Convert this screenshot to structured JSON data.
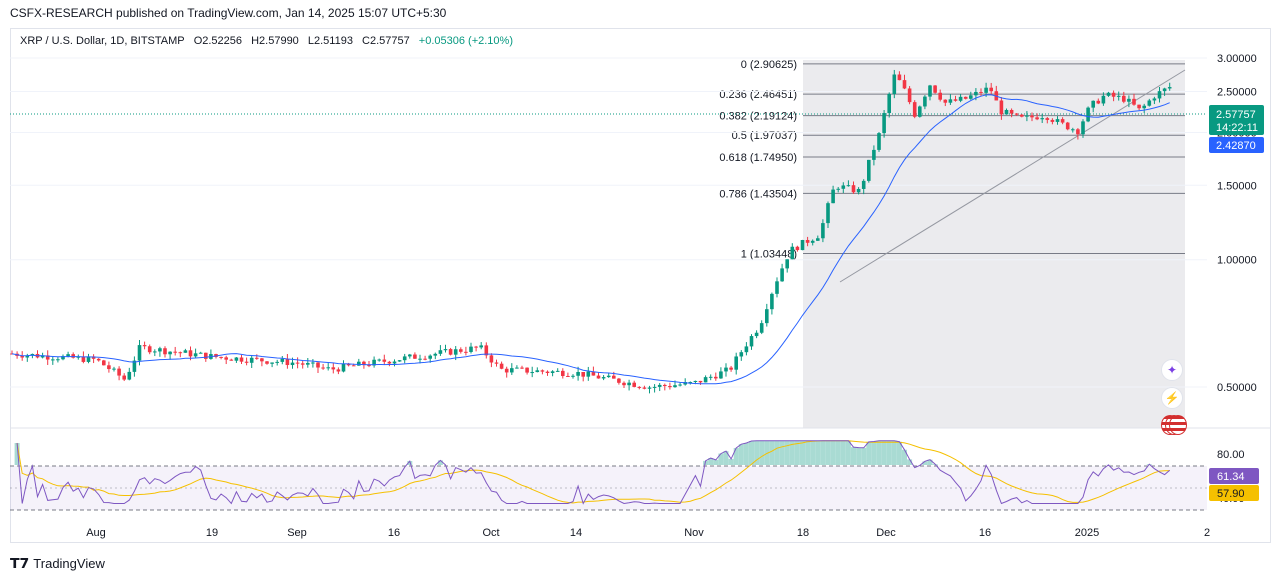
{
  "header": {
    "published_by": "CSFX-RESEARCH published on TradingView.com, Jan 14, 2025 15:07 UTC+5:30"
  },
  "legend": {
    "symbol": "XRP / U.S. Dollar, 1D, BITSTAMP",
    "open": "O2.52256",
    "high": "H2.57990",
    "low": "L2.51193",
    "close": "C2.57757",
    "change": "+0.05306 (+2.10%)",
    "change_color": "#089981"
  },
  "footer": {
    "brand": "TradingView"
  },
  "colors": {
    "up": "#089981",
    "down": "#f23645",
    "ma": "#2962ff",
    "rsi": "#7e57c2",
    "rsi_ma": "#f5c000",
    "fib_zone": "#e9e9ec"
  },
  "chart_data": [
    {
      "type": "candlestick",
      "title": "",
      "y_scale": "log",
      "ylim": [
        0.35,
        3.15
      ],
      "y_ticks": [
        "3.00000",
        "2.50000",
        "2.00000",
        "1.50000",
        "1.00000",
        "0.50000"
      ],
      "x_ticks": [
        "Aug",
        "19",
        "Sep",
        "16",
        "Oct",
        "14",
        "Nov",
        "18",
        "Dec",
        "16",
        "2025",
        "2"
      ],
      "price_labels": {
        "last": "2.57757",
        "countdown": "14:22:11",
        "ma": "2.42870"
      },
      "fib_levels": [
        {
          "label": "0 (2.90625)",
          "value": 2.90625
        },
        {
          "label": "0.236 (2.46451)",
          "value": 2.46451
        },
        {
          "label": "0.382 (2.19124)",
          "value": 2.19124
        },
        {
          "label": "0.5 (1.97037)",
          "value": 1.97037
        },
        {
          "label": "0.618 (1.74950)",
          "value": 1.7495
        },
        {
          "label": "0.786 (1.43504)",
          "value": 1.43504
        },
        {
          "label": "1 (1.03448)",
          "value": 1.03448
        }
      ],
      "series": {
        "close_by_period": {
          "Jul-late": 0.6,
          "Aug": 0.56,
          "Aug-19": 0.59,
          "Sep": 0.57,
          "Sep-16": 0.58,
          "Oct": 0.6,
          "Oct-14": 0.54,
          "Nov": 0.51,
          "Nov-10": 0.58,
          "Nov-18": 1.1,
          "Nov-25": 1.5,
          "Dec": 2.45,
          "Dec-16": 2.3,
          "Dec-23": 2.2,
          "Dec-30": 2.05,
          "2025": 2.38,
          "Jan-14": 2.57757
        }
      }
    },
    {
      "type": "line",
      "title": "",
      "ylim": [
        30,
        100
      ],
      "y_ticks": [
        "80.00",
        "40.00"
      ],
      "value_labels": {
        "rsi": "61.34",
        "rsi_ma": "57.90"
      }
    }
  ]
}
